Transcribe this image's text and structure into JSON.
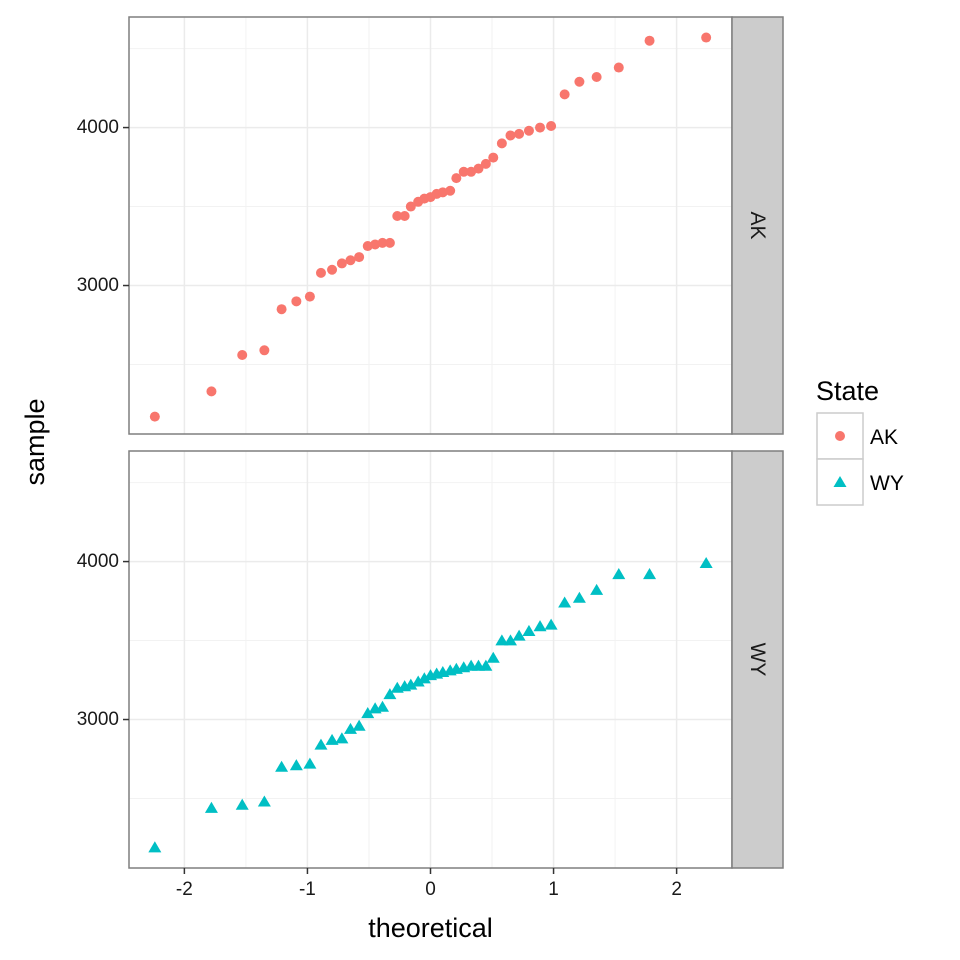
{
  "chart_data": {
    "type": "scatter",
    "xlabel": "theoretical",
    "ylabel": "sample",
    "xlim": [
      -2.45,
      2.45
    ],
    "ylim": [
      2060,
      4700
    ],
    "x_ticks": [
      -2,
      -1,
      0,
      1,
      2
    ],
    "x_tick_labels": [
      "-2",
      "-1",
      "0",
      "1",
      "2"
    ],
    "y_ticks": [
      3000,
      4000
    ],
    "y_tick_labels": [
      "3000",
      "4000"
    ],
    "grid": true,
    "legend": {
      "title": "State",
      "placement": "right",
      "entries": [
        {
          "label": "AK",
          "shape": "circle",
          "color": "#F8766D"
        },
        {
          "label": "WY",
          "shape": "triangle",
          "color": "#00BFC4"
        }
      ]
    },
    "panels": [
      {
        "strip": "AK",
        "series_name": "AK",
        "shape": "circle",
        "color": "#F8766D",
        "x": [
          -2.24,
          -1.78,
          -1.53,
          -1.35,
          -1.21,
          -1.09,
          -0.98,
          -0.89,
          -0.8,
          -0.72,
          -0.65,
          -0.58,
          -0.51,
          -0.45,
          -0.39,
          -0.33,
          -0.27,
          -0.21,
          -0.16,
          -0.1,
          -0.05,
          0.0,
          0.05,
          0.1,
          0.16,
          0.21,
          0.27,
          0.33,
          0.39,
          0.45,
          0.51,
          0.58,
          0.65,
          0.72,
          0.8,
          0.89,
          0.98,
          1.09,
          1.21,
          1.35,
          1.53,
          1.78,
          2.24
        ],
        "y": [
          2170,
          2330,
          2560,
          2590,
          2850,
          2900,
          2930,
          3080,
          3100,
          3140,
          3160,
          3180,
          3250,
          3260,
          3270,
          3270,
          3440,
          3440,
          3500,
          3530,
          3550,
          3560,
          3580,
          3590,
          3600,
          3680,
          3720,
          3720,
          3740,
          3770,
          3810,
          3900,
          3950,
          3960,
          3980,
          4000,
          4010,
          4210,
          4290,
          4320,
          4380,
          4550,
          4570
        ]
      },
      {
        "strip": "WY",
        "series_name": "WY",
        "shape": "triangle",
        "color": "#00BFC4",
        "x": [
          -2.24,
          -1.78,
          -1.53,
          -1.35,
          -1.21,
          -1.09,
          -0.98,
          -0.89,
          -0.8,
          -0.72,
          -0.65,
          -0.58,
          -0.51,
          -0.45,
          -0.39,
          -0.33,
          -0.27,
          -0.21,
          -0.16,
          -0.1,
          -0.05,
          0.0,
          0.05,
          0.1,
          0.16,
          0.21,
          0.27,
          0.33,
          0.39,
          0.45,
          0.51,
          0.58,
          0.65,
          0.72,
          0.8,
          0.89,
          0.98,
          1.09,
          1.21,
          1.35,
          1.53,
          1.78,
          2.24
        ],
        "y": [
          2190,
          2440,
          2460,
          2480,
          2700,
          2710,
          2720,
          2840,
          2870,
          2880,
          2940,
          2960,
          3040,
          3070,
          3080,
          3160,
          3200,
          3210,
          3220,
          3240,
          3260,
          3280,
          3290,
          3300,
          3310,
          3320,
          3330,
          3340,
          3340,
          3340,
          3390,
          3500,
          3500,
          3530,
          3560,
          3590,
          3600,
          3740,
          3770,
          3820,
          3920,
          3920,
          3990
        ]
      }
    ]
  }
}
